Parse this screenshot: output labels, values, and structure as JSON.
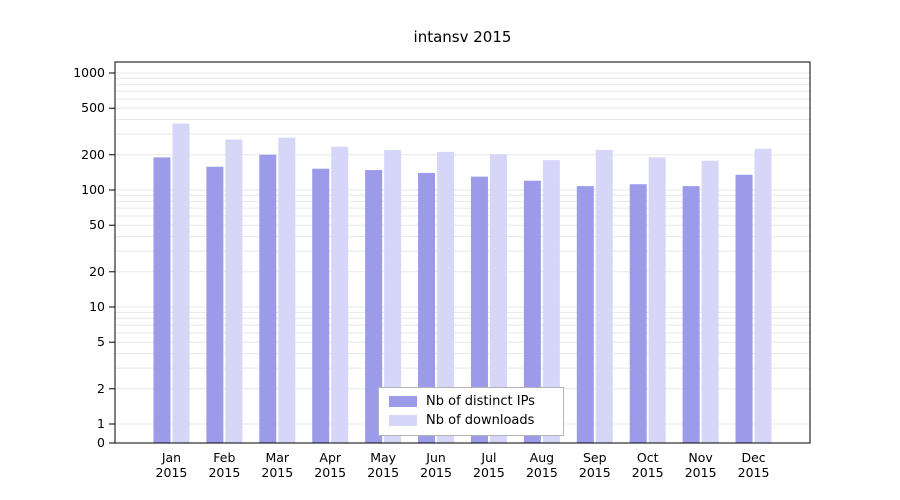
{
  "title": "intansv 2015",
  "chart_data": {
    "type": "bar",
    "title": "intansv 2015",
    "categories": [
      "Jan",
      "Feb",
      "Mar",
      "Apr",
      "May",
      "Jun",
      "Jul",
      "Aug",
      "Sep",
      "Oct",
      "Nov",
      "Dec"
    ],
    "year": "2015",
    "series": [
      {
        "name": "Nb of distinct IPs",
        "color": "#9b9bea",
        "values": [
          190,
          158,
          200,
          152,
          148,
          140,
          130,
          120,
          108,
          112,
          108,
          135
        ]
      },
      {
        "name": "Nb of downloads",
        "color": "#d6d6f8",
        "values": [
          370,
          270,
          280,
          235,
          220,
          212,
          202,
          180,
          220,
          190,
          178,
          225
        ]
      }
    ],
    "y_scale": "log",
    "y_ticks": [
      0,
      1,
      2,
      5,
      10,
      20,
      50,
      100,
      200,
      500,
      1000
    ],
    "ylim": [
      0,
      1000
    ],
    "grid": true,
    "grid_color": "#e8e8e8",
    "frame_color": "#000000",
    "legend_position": "bottom-center"
  }
}
